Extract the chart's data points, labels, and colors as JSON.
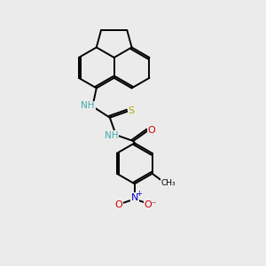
{
  "background_color": "#ebebeb",
  "bond_color": "#000000",
  "atom_colors": {
    "N": "#0000cc",
    "NH": "#44aaaa",
    "S": "#aaaa00",
    "O": "#cc0000",
    "C": "#000000"
  },
  "lw": 1.4,
  "figsize": [
    3.0,
    3.0
  ],
  "dpi": 100
}
